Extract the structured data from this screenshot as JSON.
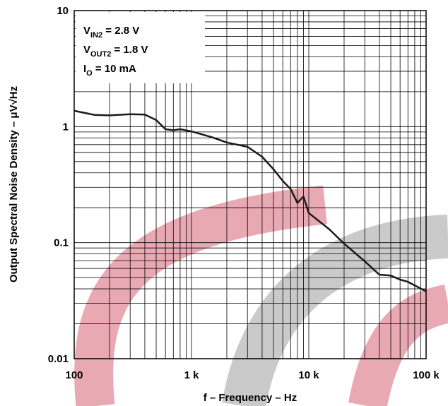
{
  "chart_data": {
    "type": "line",
    "ylabel": "Output Spectral Noise Density –  μV√Hz",
    "xlabel": "f – Frequency – Hz",
    "annotations": [
      {
        "main": "V",
        "sub": "IN2",
        "rest": " = 2.8 V"
      },
      {
        "main": "V",
        "sub": "OUT2",
        "rest": " = 1.8 V"
      },
      {
        "main": "I",
        "sub": "O",
        "rest": " = 10 mA"
      }
    ],
    "log_x": true,
    "log_y": true,
    "grid": true,
    "xlim": [
      100,
      100000
    ],
    "xticks": [
      100,
      {
        "value": 1000,
        "label": "1 k"
      },
      {
        "value": 10000,
        "label": "10 k"
      },
      {
        "value": 100000,
        "label": "100 k"
      }
    ],
    "ylim": [
      0.01,
      10
    ],
    "yticks": [
      0.01,
      0.1,
      1,
      10
    ],
    "x": [
      100,
      150,
      200,
      300,
      400,
      500,
      600,
      700,
      800,
      1000,
      1500,
      2000,
      3000,
      4000,
      5000,
      6000,
      7000,
      8000,
      9000,
      10000,
      15000,
      20000,
      30000,
      40000,
      50000,
      60000,
      70000,
      100000
    ],
    "series": [
      {
        "color": "#1a1a1a",
        "values": [
          1.37,
          1.26,
          1.25,
          1.28,
          1.27,
          1.14,
          0.95,
          0.93,
          0.95,
          0.91,
          0.81,
          0.73,
          0.67,
          0.55,
          0.43,
          0.34,
          0.29,
          0.22,
          0.25,
          0.18,
          0.13,
          0.098,
          0.069,
          0.053,
          0.052,
          0.048,
          0.046,
          0.038
        ]
      }
    ]
  }
}
